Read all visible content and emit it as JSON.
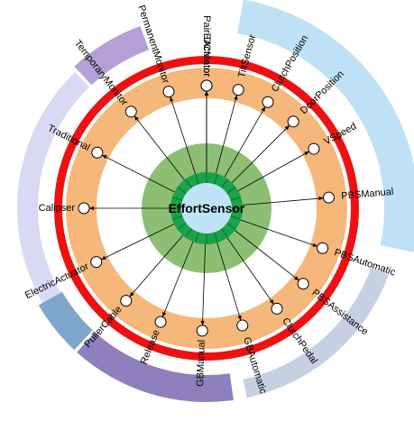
{
  "center": {
    "label": "EffortSensor"
  },
  "colors": {
    "core": "#bfe4f7",
    "core_ring": "#1aa34a",
    "green_halo": "#8cbf73",
    "orange_band": "#f6b77a",
    "red_ring": "#ee1111",
    "node_fill": "#ffffff",
    "edge": "#000000"
  },
  "nodes": [
    {
      "label": "PairEActuator"
    },
    {
      "label": "TiltSensor"
    },
    {
      "label": "ClutchPosition"
    },
    {
      "label": "DoorPosition"
    },
    {
      "label": "VSpeed"
    },
    {
      "label": "PBSManual"
    },
    {
      "label": "PBSAutomatic"
    },
    {
      "label": "PBSAssistance"
    },
    {
      "label": "ClutchPedal"
    },
    {
      "label": "GBAutomatic"
    },
    {
      "label": "GBManual"
    },
    {
      "label": "Release"
    },
    {
      "label": "PullerCable"
    },
    {
      "label": "ElectricActuator"
    },
    {
      "label": "Calipser"
    },
    {
      "label": "Traditional"
    },
    {
      "label": "TemporaryMonitor"
    },
    {
      "label": "PermanentMonitor"
    },
    {
      "label": "DCMotor"
    }
  ],
  "groups": [
    {
      "color": "#bfe1f6"
    },
    {
      "color": "#c5d0e2"
    },
    {
      "color": "#8e80bd"
    },
    {
      "color": "#7fa6cc"
    },
    {
      "color": "#d9d9f4"
    },
    {
      "color": "#b59fd6"
    }
  ]
}
